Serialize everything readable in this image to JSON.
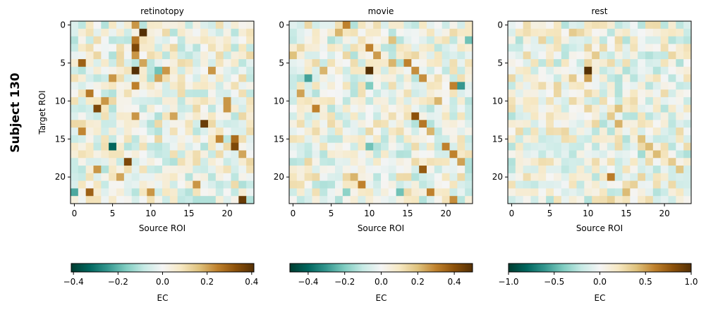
{
  "figure": {
    "row_label": "Subject 130",
    "ylabel": "Target ROI",
    "xlabel": "Source ROI",
    "colorbar_label": "EC"
  },
  "chart_data": [
    {
      "type": "heatmap",
      "title": "retinotopy",
      "xlabel": "Source ROI",
      "ylabel": "Target ROI",
      "n": 24,
      "xticks": [
        0,
        5,
        10,
        15,
        20
      ],
      "yticks": [
        0,
        5,
        10,
        15,
        20
      ],
      "colorbar": {
        "label": "EC",
        "vmin": -0.41,
        "vmax": 0.41,
        "ticks": [
          -0.4,
          -0.2,
          0.0,
          0.2,
          0.4
        ],
        "tick_labels": [
          "−0.4",
          "−0.2",
          "0.0",
          "0.2",
          "0.4"
        ]
      },
      "seed": 130,
      "strong": [
        [
          0,
          8,
          0.22
        ],
        [
          1,
          9,
          0.41
        ],
        [
          2,
          8,
          0.26
        ],
        [
          3,
          8,
          0.35
        ],
        [
          4,
          8,
          0.22
        ],
        [
          5,
          1,
          0.3
        ],
        [
          5,
          9,
          0.2
        ],
        [
          6,
          8,
          0.41
        ],
        [
          6,
          11,
          -0.18
        ],
        [
          6,
          12,
          0.22
        ],
        [
          6,
          18,
          0.22
        ],
        [
          7,
          5,
          0.22
        ],
        [
          7,
          11,
          0.2
        ],
        [
          8,
          8,
          0.25
        ],
        [
          9,
          2,
          0.26
        ],
        [
          10,
          4,
          0.22
        ],
        [
          10,
          20,
          0.22
        ],
        [
          11,
          3,
          0.35
        ],
        [
          11,
          20,
          0.22
        ],
        [
          12,
          8,
          0.22
        ],
        [
          12,
          13,
          0.2
        ],
        [
          13,
          17,
          0.38
        ],
        [
          14,
          1,
          0.24
        ],
        [
          15,
          19,
          0.24
        ],
        [
          15,
          21,
          0.28
        ],
        [
          16,
          5,
          -0.33
        ],
        [
          16,
          21,
          0.35
        ],
        [
          17,
          22,
          0.2
        ],
        [
          18,
          7,
          0.35
        ],
        [
          19,
          3,
          0.22
        ],
        [
          20,
          6,
          0.2
        ],
        [
          21,
          16,
          0.22
        ],
        [
          22,
          0,
          -0.22
        ],
        [
          22,
          2,
          0.3
        ],
        [
          22,
          10,
          0.22
        ],
        [
          23,
          22,
          0.38
        ]
      ]
    },
    {
      "type": "heatmap",
      "title": "movie",
      "xlabel": "Source ROI",
      "ylabel": "",
      "n": 24,
      "xticks": [
        0,
        5,
        10,
        15,
        20
      ],
      "yticks": [
        0,
        5,
        10,
        15,
        20
      ],
      "colorbar": {
        "label": "EC",
        "vmin": -0.5,
        "vmax": 0.5,
        "ticks": [
          -0.4,
          -0.2,
          0.0,
          0.2,
          0.4
        ],
        "tick_labels": [
          "−0.4",
          "−0.2",
          "0.0",
          "0.2",
          "0.4"
        ]
      },
      "seed": 231,
      "strong": [
        [
          0,
          7,
          0.3
        ],
        [
          1,
          6,
          0.22
        ],
        [
          2,
          13,
          0.2
        ],
        [
          2,
          23,
          -0.22
        ],
        [
          3,
          10,
          0.3
        ],
        [
          4,
          0,
          0.2
        ],
        [
          4,
          11,
          0.26
        ],
        [
          5,
          13,
          0.22
        ],
        [
          5,
          15,
          0.3
        ],
        [
          6,
          4,
          0.22
        ],
        [
          6,
          10,
          0.5
        ],
        [
          6,
          16,
          0.28
        ],
        [
          7,
          2,
          -0.28
        ],
        [
          7,
          17,
          0.28
        ],
        [
          8,
          21,
          0.3
        ],
        [
          8,
          22,
          -0.3
        ],
        [
          8,
          10,
          -0.2
        ],
        [
          9,
          1,
          0.25
        ],
        [
          10,
          19,
          0.22
        ],
        [
          11,
          3,
          0.3
        ],
        [
          12,
          16,
          0.4
        ],
        [
          13,
          17,
          0.32
        ],
        [
          14,
          18,
          0.22
        ],
        [
          16,
          10,
          -0.22
        ],
        [
          16,
          20,
          0.3
        ],
        [
          17,
          21,
          0.3
        ],
        [
          18,
          22,
          0.25
        ],
        [
          19,
          17,
          0.38
        ],
        [
          20,
          8,
          0.22
        ],
        [
          21,
          9,
          0.3
        ],
        [
          22,
          18,
          0.3
        ],
        [
          22,
          14,
          -0.22
        ],
        [
          22,
          7,
          -0.18
        ],
        [
          23,
          21,
          0.28
        ]
      ]
    },
    {
      "type": "heatmap",
      "title": "rest",
      "xlabel": "Source ROI",
      "ylabel": "",
      "n": 24,
      "xticks": [
        0,
        5,
        10,
        15,
        20
      ],
      "yticks": [
        0,
        5,
        10,
        15,
        20
      ],
      "colorbar": {
        "label": "EC",
        "vmin": -1.0,
        "vmax": 1.0,
        "ticks": [
          -1.0,
          -0.5,
          0.0,
          0.5,
          1.0
        ],
        "tick_labels": [
          "−1.0",
          "−0.5",
          "0.0",
          "0.5",
          "1.0"
        ]
      },
      "seed": 377,
      "strong": [
        [
          1,
          8,
          0.35
        ],
        [
          2,
          4,
          0.3
        ],
        [
          3,
          10,
          0.3
        ],
        [
          4,
          2,
          0.28
        ],
        [
          4,
          11,
          0.35
        ],
        [
          5,
          10,
          0.3
        ],
        [
          6,
          10,
          1.0
        ],
        [
          7,
          8,
          0.35
        ],
        [
          7,
          10,
          0.5
        ],
        [
          8,
          6,
          0.3
        ],
        [
          9,
          10,
          0.28
        ],
        [
          10,
          8,
          0.28
        ],
        [
          11,
          10,
          0.3
        ],
        [
          11,
          14,
          0.4
        ],
        [
          12,
          13,
          0.35
        ],
        [
          13,
          14,
          0.45
        ],
        [
          14,
          3,
          0.22
        ],
        [
          15,
          17,
          0.4
        ],
        [
          16,
          18,
          0.42
        ],
        [
          17,
          17,
          -0.3
        ],
        [
          17,
          19,
          0.42
        ],
        [
          18,
          21,
          0.35
        ],
        [
          19,
          22,
          0.38
        ],
        [
          20,
          13,
          0.62
        ],
        [
          20,
          17,
          0.3
        ],
        [
          21,
          16,
          0.32
        ],
        [
          22,
          15,
          0.42
        ],
        [
          23,
          13,
          0.32
        ]
      ]
    }
  ]
}
